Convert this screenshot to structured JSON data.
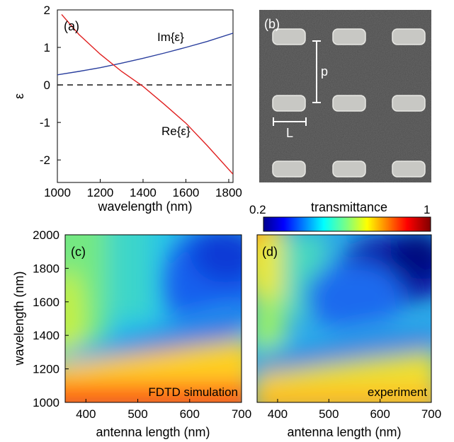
{
  "chart_data": [
    {
      "panel": "(a)",
      "type": "line",
      "xlabel": "wavelength (nm)",
      "ylabel": "ε",
      "xlim": [
        1000,
        1820
      ],
      "ylim": [
        -2.6,
        2.0
      ],
      "xticks": [
        1000,
        1200,
        1400,
        1600,
        1800
      ],
      "yticks": [
        -2,
        -1,
        0,
        1,
        2
      ],
      "series": [
        {
          "name": "Im{ε}",
          "color": "#2a3f9e",
          "x": [
            1000,
            1100,
            1200,
            1300,
            1400,
            1500,
            1600,
            1700,
            1820
          ],
          "y": [
            0.27,
            0.36,
            0.46,
            0.58,
            0.71,
            0.85,
            1.0,
            1.16,
            1.38
          ]
        },
        {
          "name": "Re{ε}",
          "color": "#e02020",
          "x": [
            1020,
            1100,
            1200,
            1300,
            1400,
            1500,
            1600,
            1700,
            1820
          ],
          "y": [
            1.88,
            1.35,
            0.82,
            0.36,
            -0.04,
            -0.52,
            -1.02,
            -1.62,
            -2.38
          ]
        }
      ],
      "reference_line": {
        "y": 0,
        "style": "dashed",
        "color": "#000000"
      }
    },
    {
      "panel": "(b)",
      "type": "image",
      "description_labels": {
        "period": "p",
        "length": "L"
      },
      "grid_rows": 3,
      "grid_cols": 3
    },
    {
      "panel": "(c)",
      "type": "heatmap",
      "annotation": "FDTD simulation",
      "xlabel": "antenna length (nm)",
      "ylabel": "wavelength (nm)",
      "xlim": [
        360,
        700
      ],
      "ylim": [
        1000,
        2000
      ],
      "xticks": [
        400,
        500,
        600,
        700
      ],
      "yticks": [
        1000,
        1200,
        1400,
        1600,
        1800,
        2000
      ]
    },
    {
      "panel": "(d)",
      "type": "heatmap",
      "annotation": "experiment",
      "xlabel": "antenna length (nm)",
      "xlim": [
        360,
        700
      ],
      "ylim": [
        1000,
        2000
      ],
      "xticks": [
        400,
        500,
        600,
        700
      ]
    }
  ],
  "colorbar": {
    "label": "transmittance",
    "min_label": "0.2",
    "max_label": "1",
    "range": [
      0.2,
      1.0
    ],
    "colormap": "jet"
  }
}
